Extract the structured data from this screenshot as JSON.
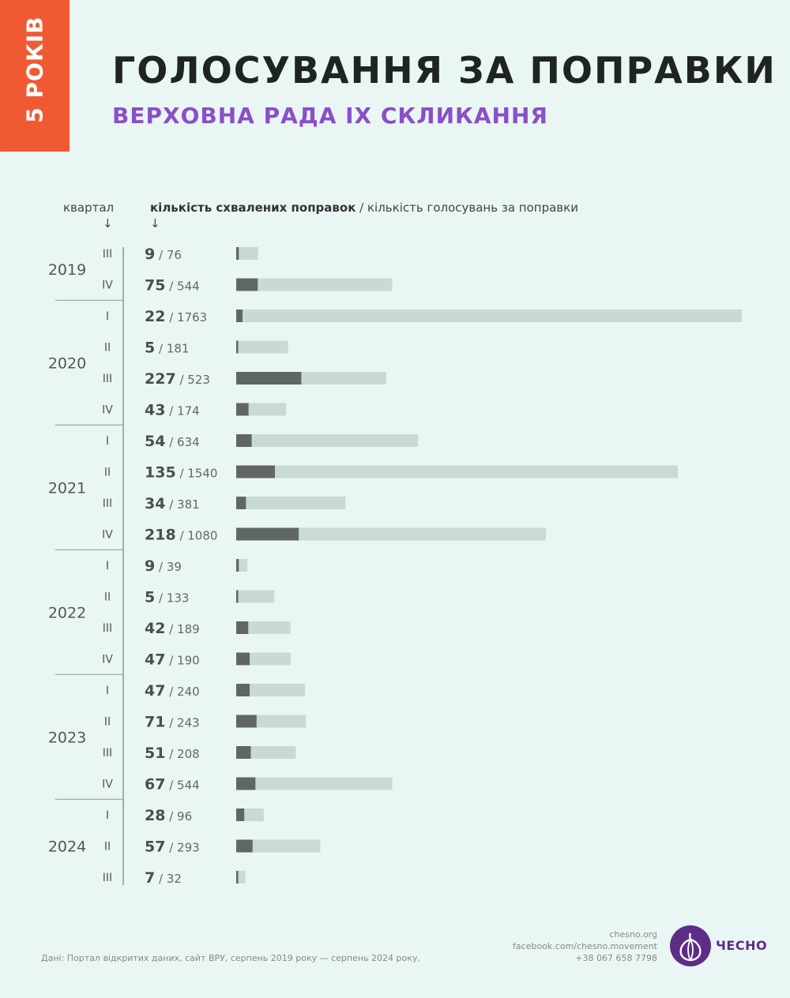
{
  "badge": "5 РОКІВ",
  "title": "ГОЛОСУВАННЯ ЗА ПОПРАВКИ",
  "subtitle": "ВЕРХОВНА РАДА IX СКЛИКАННЯ",
  "header": {
    "quarter_label": "квартал",
    "values_bold": "кількість схвалених поправок",
    "values_rest": " / кількість голосувань за поправки",
    "arrow": "↓"
  },
  "colors": {
    "approved": "#5f6665",
    "total": "#c9d9d5",
    "accent": "#8a4fc8",
    "badge": "#f05a32"
  },
  "chart_data": {
    "type": "bar",
    "orientation": "horizontal",
    "stacked": "overlay",
    "series": [
      {
        "name": "кількість схвалених поправок",
        "values": [
          9,
          75,
          22,
          5,
          227,
          43,
          54,
          135,
          34,
          218,
          9,
          5,
          42,
          47,
          47,
          71,
          51,
          67,
          28,
          57,
          7
        ]
      },
      {
        "name": "кількість голосувань за поправки",
        "values": [
          76,
          544,
          1763,
          181,
          523,
          174,
          634,
          1540,
          381,
          1080,
          39,
          133,
          189,
          190,
          240,
          243,
          208,
          544,
          96,
          293,
          32
        ]
      }
    ],
    "years": [
      {
        "year": "2019",
        "quarters": [
          "III",
          "IV"
        ]
      },
      {
        "year": "2020",
        "quarters": [
          "I",
          "II",
          "III",
          "IV"
        ]
      },
      {
        "year": "2021",
        "quarters": [
          "I",
          "II",
          "III",
          "IV"
        ]
      },
      {
        "year": "2022",
        "quarters": [
          "I",
          "II",
          "III",
          "IV"
        ]
      },
      {
        "year": "2023",
        "quarters": [
          "I",
          "II",
          "III",
          "IV"
        ]
      },
      {
        "year": "2024",
        "quarters": [
          "I",
          "II",
          "III"
        ]
      }
    ],
    "xlim": [
      0,
      1763
    ]
  },
  "footer": {
    "source": "Дані: Портал відкритих даних, сайт ВРУ, серпень 2019 року — серпень 2024 року.",
    "site": "chesno.org",
    "facebook": "facebook.com/chesno.movement",
    "phone": "+38 067 658 7798",
    "logo": "ЧЕСНО",
    "logo_icon": "garlic-icon"
  }
}
